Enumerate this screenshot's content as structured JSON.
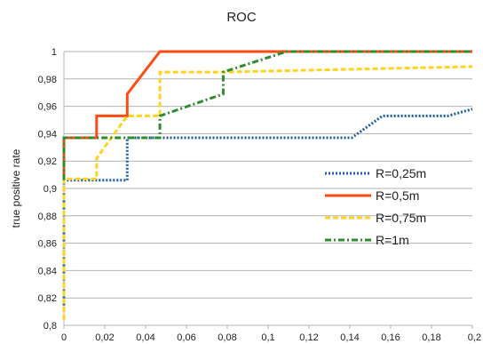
{
  "chart_data": {
    "type": "line",
    "title": "ROC",
    "xlabel": "",
    "ylabel": "true positive rate",
    "xlim": [
      0,
      0.2
    ],
    "ylim": [
      0.8,
      1
    ],
    "x_ticks": [
      "0",
      "0,02",
      "0,04",
      "0,06",
      "0,08",
      "0,1",
      "0,12",
      "0,14",
      "0,16",
      "0,18",
      "0,2"
    ],
    "y_ticks": [
      "0,8",
      "0,82",
      "0,84",
      "0,86",
      "0,88",
      "0,9",
      "0,92",
      "0,94",
      "0,96",
      "0,98",
      "1"
    ],
    "grid": "horizontal",
    "legend_position": "right",
    "series": [
      {
        "name": "R=0,25m",
        "color": "#1f5fa8",
        "dash": "dotted",
        "points": [
          [
            0,
            0.812
          ],
          [
            0,
            0.906
          ],
          [
            0.031,
            0.906
          ],
          [
            0.031,
            0.937
          ],
          [
            0.141,
            0.937
          ],
          [
            0.156,
            0.953
          ],
          [
            0.188,
            0.953
          ],
          [
            0.2,
            0.958
          ]
        ]
      },
      {
        "name": "R=0,5m",
        "color": "#ff4a12",
        "dash": "solid",
        "points": [
          [
            0,
            0.906
          ],
          [
            0,
            0.937
          ],
          [
            0.016,
            0.937
          ],
          [
            0.016,
            0.953
          ],
          [
            0.031,
            0.953
          ],
          [
            0.031,
            0.969
          ],
          [
            0.047,
            1.0
          ],
          [
            0.2,
            1.0
          ]
        ]
      },
      {
        "name": "R=0,75m",
        "color": "#ffd320",
        "dash": "dashed",
        "points": [
          [
            0,
            0.804
          ],
          [
            0,
            0.907
          ],
          [
            0.016,
            0.907
          ],
          [
            0.016,
            0.922
          ],
          [
            0.031,
            0.953
          ],
          [
            0.047,
            0.953
          ],
          [
            0.047,
            0.985
          ],
          [
            0.078,
            0.985
          ],
          [
            0.2,
            0.989
          ]
        ]
      },
      {
        "name": "R=1m",
        "color": "#2e8b2e",
        "dash": "dashdot",
        "points": [
          [
            0,
            0.906
          ],
          [
            0,
            0.937
          ],
          [
            0.047,
            0.937
          ],
          [
            0.047,
            0.953
          ],
          [
            0.078,
            0.969
          ],
          [
            0.078,
            0.985
          ],
          [
            0.109,
            1.0
          ],
          [
            0.2,
            1.0
          ]
        ]
      }
    ]
  }
}
